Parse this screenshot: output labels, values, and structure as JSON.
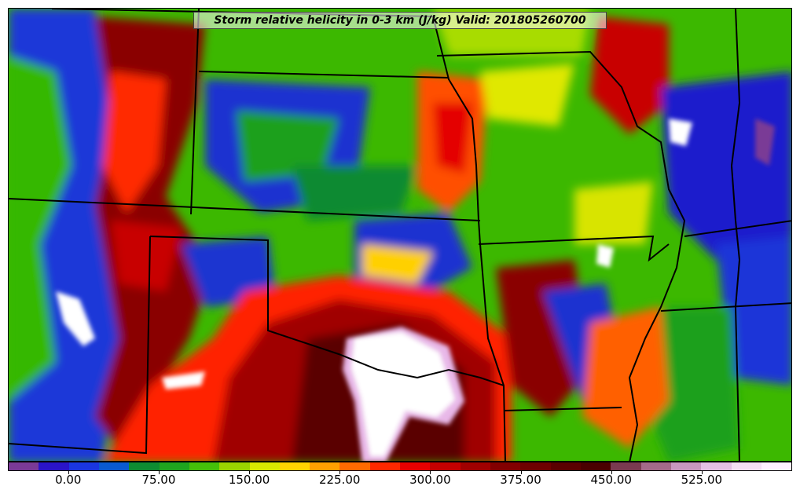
{
  "title": "Storm relative helicity in 0-3 km (J/kg) Valid: 201805260700",
  "colorbar": {
    "levels_start": -50,
    "level_step": 25,
    "colors": [
      "#7a3a96",
      "#2a14c8",
      "#1a36e0",
      "#0a5ad0",
      "#0e8c32",
      "#1fa51f",
      "#45c00a",
      "#9ad400",
      "#d8e800",
      "#ffd400",
      "#ffa000",
      "#ff6a00",
      "#ff2800",
      "#e80000",
      "#c40000",
      "#a00000",
      "#820000",
      "#6e0000",
      "#5a0000",
      "#4a0000",
      "#7a3a50",
      "#a46a8a",
      "#c898c0",
      "#e4c0e4",
      "#f4def4",
      "#fff0ff"
    ],
    "tick_labels": [
      "0.00",
      "75.00",
      "150.00",
      "225.00",
      "300.00",
      "375.00",
      "450.00",
      "525.00"
    ],
    "tick_values": [
      0,
      75,
      150,
      225,
      300,
      375,
      450,
      525
    ]
  }
}
